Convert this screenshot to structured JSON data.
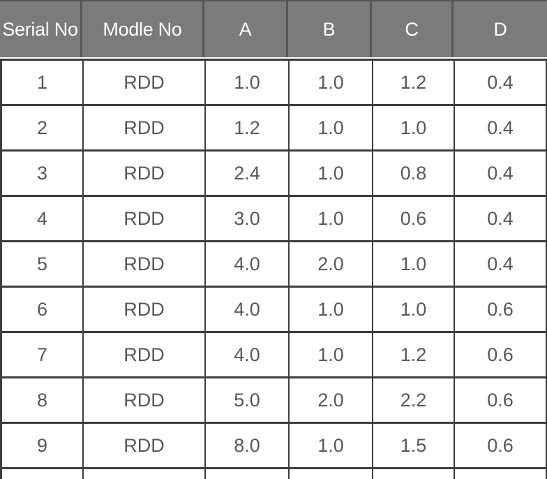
{
  "chart_data": {
    "type": "table",
    "title": "",
    "columns": [
      "Serial No",
      "Modle No",
      "A",
      "B",
      "C",
      "D"
    ],
    "rows": [
      [
        "1",
        "RDD",
        "1.0",
        "1.0",
        "1.2",
        "0.4"
      ],
      [
        "2",
        "RDD",
        "1.2",
        "1.0",
        "1.0",
        "0.4"
      ],
      [
        "3",
        "RDD",
        "2.4",
        "1.0",
        "0.8",
        "0.4"
      ],
      [
        "4",
        "RDD",
        "3.0",
        "1.0",
        "0.6",
        "0.4"
      ],
      [
        "5",
        "RDD",
        "4.0",
        "2.0",
        "1.0",
        "0.4"
      ],
      [
        "6",
        "RDD",
        "4.0",
        "1.0",
        "1.0",
        "0.6"
      ],
      [
        "7",
        "RDD",
        "4.0",
        "1.0",
        "1.2",
        "0.6"
      ],
      [
        "8",
        "RDD",
        "5.0",
        "2.0",
        "2.2",
        "0.6"
      ],
      [
        "9",
        "RDD",
        "8.0",
        "1.0",
        "1.5",
        "0.6"
      ]
    ]
  },
  "colors": {
    "header_bg": "#7b7b7b",
    "header_text": "#fdfdfd",
    "header_divider": "#565656",
    "body_text": "#58585a",
    "border": "#3d3d3d"
  }
}
